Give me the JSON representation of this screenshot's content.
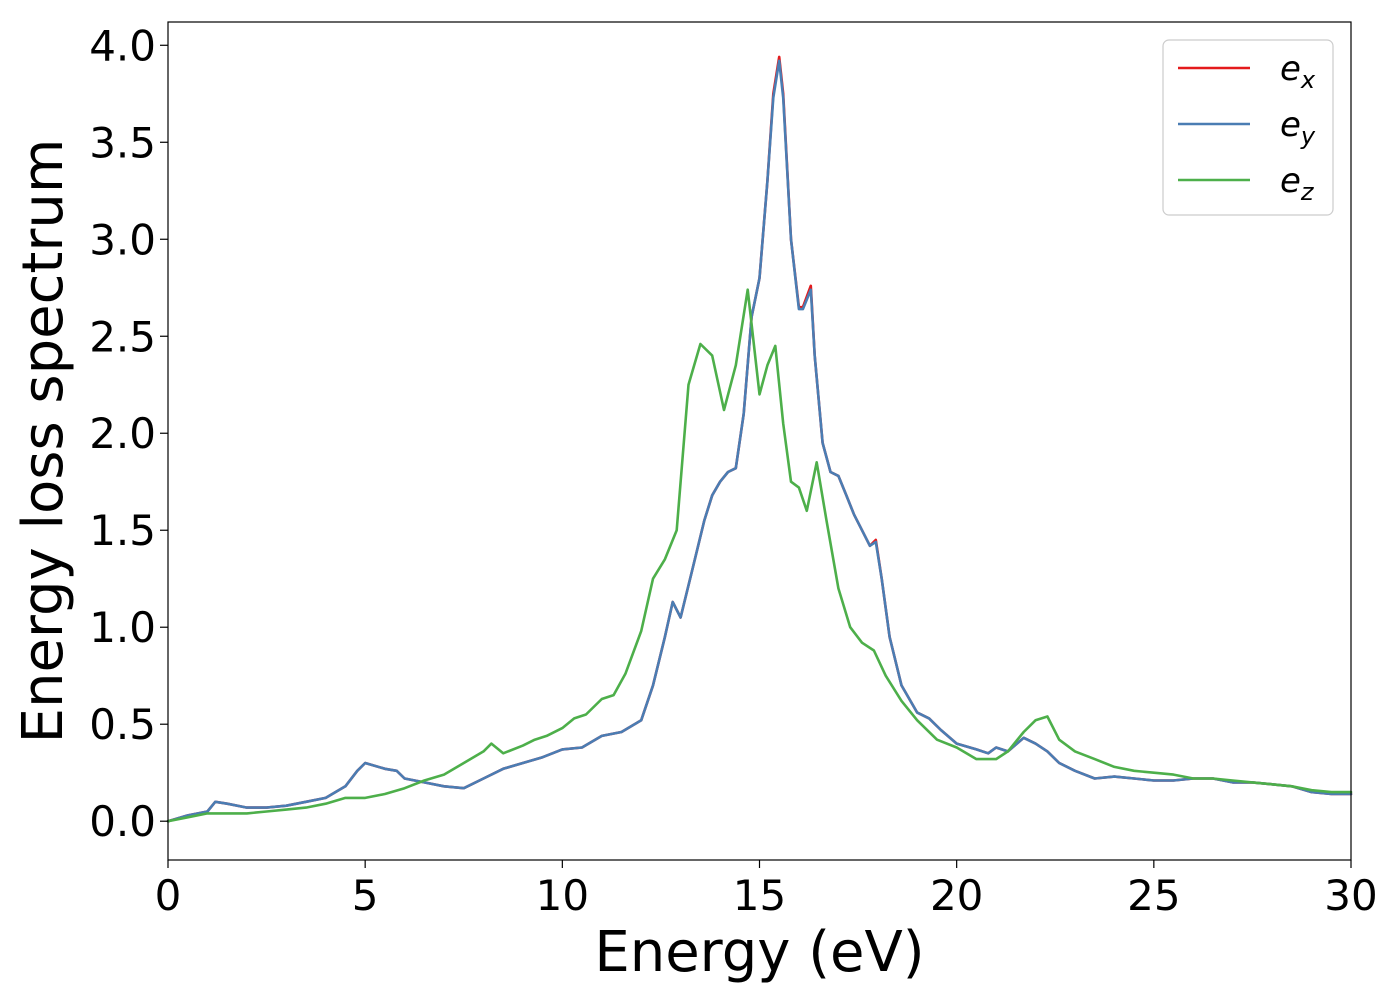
{
  "chart_data": {
    "type": "line",
    "title": "",
    "xlabel": "Energy (eV)",
    "ylabel": "Energy loss spectrum",
    "xlim": [
      0,
      30
    ],
    "ylim": [
      -0.2,
      4.12
    ],
    "xticks": [
      "0",
      "5",
      "10",
      "15",
      "20",
      "25",
      "30"
    ],
    "yticks": [
      "0.0",
      "0.5",
      "1.0",
      "1.5",
      "2.0",
      "2.5",
      "3.0",
      "3.5",
      "4.0"
    ],
    "xtick_values": [
      0,
      5,
      10,
      15,
      20,
      25,
      30
    ],
    "ytick_values": [
      0,
      0.5,
      1,
      1.5,
      2,
      2.5,
      3,
      3.5,
      4
    ],
    "grid": false,
    "legend_position": "top-right",
    "series": [
      {
        "name": "e_x",
        "label_base": "e",
        "label_sub": "x",
        "color": "#e41a1c",
        "x": [
          0,
          0.5,
          1,
          1.2,
          1.5,
          2,
          2.5,
          3,
          3.5,
          4,
          4.5,
          4.8,
          5,
          5.5,
          5.8,
          6,
          6.5,
          7,
          7.5,
          8,
          8.5,
          9,
          9.5,
          10,
          10.5,
          11,
          11.5,
          12,
          12.3,
          12.6,
          12.8,
          13,
          13.3,
          13.6,
          13.8,
          14,
          14.2,
          14.4,
          14.6,
          14.8,
          15,
          15.2,
          15.35,
          15.5,
          15.6,
          15.8,
          16,
          16.1,
          16.3,
          16.4,
          16.6,
          16.8,
          17,
          17.2,
          17.4,
          17.6,
          17.8,
          17.95,
          18.1,
          18.3,
          18.6,
          19,
          19.3,
          19.6,
          20,
          20.5,
          20.8,
          21,
          21.3,
          21.7,
          22,
          22.3,
          22.6,
          23,
          23.5,
          24,
          24.5,
          25,
          25.5,
          26,
          26.5,
          27,
          27.5,
          28,
          28.5,
          29,
          29.5,
          30
        ],
        "y": [
          0,
          0.03,
          0.05,
          0.1,
          0.09,
          0.07,
          0.07,
          0.08,
          0.1,
          0.12,
          0.18,
          0.26,
          0.3,
          0.27,
          0.26,
          0.22,
          0.2,
          0.18,
          0.17,
          0.22,
          0.27,
          0.3,
          0.33,
          0.37,
          0.38,
          0.44,
          0.46,
          0.52,
          0.7,
          0.95,
          1.13,
          1.05,
          1.3,
          1.55,
          1.68,
          1.75,
          1.8,
          1.82,
          2.1,
          2.6,
          2.8,
          3.3,
          3.75,
          3.94,
          3.75,
          3.0,
          2.65,
          2.65,
          2.76,
          2.4,
          1.95,
          1.8,
          1.78,
          1.68,
          1.58,
          1.5,
          1.42,
          1.45,
          1.25,
          0.95,
          0.7,
          0.56,
          0.53,
          0.47,
          0.4,
          0.37,
          0.35,
          0.38,
          0.36,
          0.43,
          0.4,
          0.36,
          0.3,
          0.26,
          0.22,
          0.23,
          0.22,
          0.21,
          0.21,
          0.22,
          0.22,
          0.2,
          0.2,
          0.19,
          0.18,
          0.15,
          0.14,
          0.14
        ]
      },
      {
        "name": "e_y",
        "label_base": "e",
        "label_sub": "y",
        "color": "#4a7db3",
        "x": [
          0,
          0.5,
          1,
          1.2,
          1.5,
          2,
          2.5,
          3,
          3.5,
          4,
          4.5,
          4.8,
          5,
          5.5,
          5.8,
          6,
          6.5,
          7,
          7.5,
          8,
          8.5,
          9,
          9.5,
          10,
          10.5,
          11,
          11.5,
          12,
          12.3,
          12.6,
          12.8,
          13,
          13.3,
          13.6,
          13.8,
          14,
          14.2,
          14.4,
          14.6,
          14.8,
          15,
          15.2,
          15.35,
          15.5,
          15.6,
          15.8,
          16,
          16.1,
          16.3,
          16.4,
          16.6,
          16.8,
          17,
          17.2,
          17.4,
          17.6,
          17.8,
          17.95,
          18.1,
          18.3,
          18.6,
          19,
          19.3,
          19.6,
          20,
          20.5,
          20.8,
          21,
          21.3,
          21.7,
          22,
          22.3,
          22.6,
          23,
          23.5,
          24,
          24.5,
          25,
          25.5,
          26,
          26.5,
          27,
          27.5,
          28,
          28.5,
          29,
          29.5,
          30
        ],
        "y": [
          0,
          0.03,
          0.05,
          0.1,
          0.09,
          0.07,
          0.07,
          0.08,
          0.1,
          0.12,
          0.18,
          0.26,
          0.3,
          0.27,
          0.26,
          0.22,
          0.2,
          0.18,
          0.17,
          0.22,
          0.27,
          0.3,
          0.33,
          0.37,
          0.38,
          0.44,
          0.46,
          0.52,
          0.7,
          0.95,
          1.13,
          1.05,
          1.3,
          1.55,
          1.68,
          1.75,
          1.8,
          1.82,
          2.1,
          2.6,
          2.8,
          3.3,
          3.73,
          3.92,
          3.73,
          3.0,
          2.64,
          2.64,
          2.74,
          2.4,
          1.95,
          1.8,
          1.78,
          1.68,
          1.58,
          1.5,
          1.42,
          1.44,
          1.25,
          0.95,
          0.7,
          0.56,
          0.53,
          0.47,
          0.4,
          0.37,
          0.35,
          0.38,
          0.36,
          0.43,
          0.4,
          0.36,
          0.3,
          0.26,
          0.22,
          0.23,
          0.22,
          0.21,
          0.21,
          0.22,
          0.22,
          0.2,
          0.2,
          0.19,
          0.18,
          0.15,
          0.14,
          0.14
        ]
      },
      {
        "name": "e_z",
        "label_base": "e",
        "label_sub": "z",
        "color": "#4daf4a",
        "x": [
          0,
          0.5,
          1,
          1.5,
          2,
          2.5,
          3,
          3.5,
          4,
          4.5,
          5,
          5.5,
          6,
          6.5,
          7,
          7.5,
          8,
          8.2,
          8.5,
          9,
          9.3,
          9.6,
          10,
          10.3,
          10.6,
          11,
          11.3,
          11.6,
          12,
          12.3,
          12.6,
          12.9,
          13.2,
          13.5,
          13.8,
          14.1,
          14.4,
          14.7,
          15,
          15.2,
          15.4,
          15.6,
          15.8,
          16,
          16.2,
          16.45,
          16.7,
          17,
          17.3,
          17.6,
          17.9,
          18.2,
          18.6,
          19,
          19.5,
          20,
          20.5,
          21,
          21.3,
          21.7,
          22,
          22.3,
          22.6,
          23,
          23.5,
          24,
          24.5,
          25,
          25.5,
          26,
          26.5,
          27,
          27.5,
          28,
          28.5,
          29,
          29.5,
          30
        ],
        "y": [
          0,
          0.02,
          0.04,
          0.04,
          0.04,
          0.05,
          0.06,
          0.07,
          0.09,
          0.12,
          0.12,
          0.14,
          0.17,
          0.21,
          0.24,
          0.3,
          0.36,
          0.4,
          0.35,
          0.39,
          0.42,
          0.44,
          0.48,
          0.53,
          0.55,
          0.63,
          0.65,
          0.76,
          0.98,
          1.25,
          1.35,
          1.5,
          2.25,
          2.46,
          2.4,
          2.12,
          2.35,
          2.74,
          2.2,
          2.35,
          2.45,
          2.05,
          1.75,
          1.72,
          1.6,
          1.85,
          1.55,
          1.2,
          1.0,
          0.92,
          0.88,
          0.75,
          0.62,
          0.52,
          0.42,
          0.38,
          0.32,
          0.32,
          0.36,
          0.46,
          0.52,
          0.54,
          0.42,
          0.36,
          0.32,
          0.28,
          0.26,
          0.25,
          0.24,
          0.22,
          0.22,
          0.21,
          0.2,
          0.19,
          0.18,
          0.16,
          0.15,
          0.15
        ]
      }
    ]
  }
}
